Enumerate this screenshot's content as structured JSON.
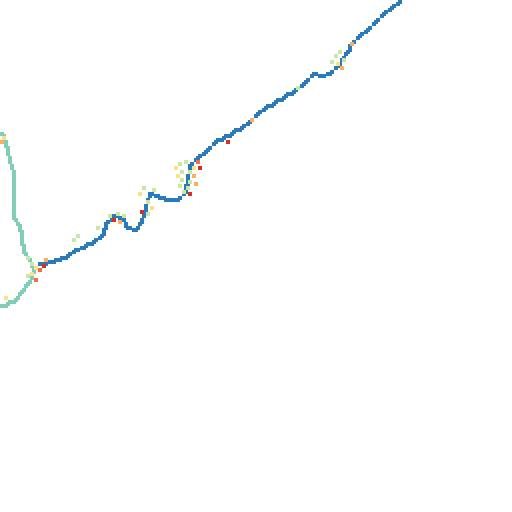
{
  "map": {
    "palette": {
      "background": "#ffffff",
      "main_route": "#2b7bba",
      "branch_route": "#80cdb8",
      "accent_light_green": "#c9e8a3",
      "accent_yellow": "#fee08b",
      "accent_light_orange": "#fdae61",
      "accent_orange": "#f46d43",
      "accent_red": "#d73027"
    },
    "legend": null
  }
}
